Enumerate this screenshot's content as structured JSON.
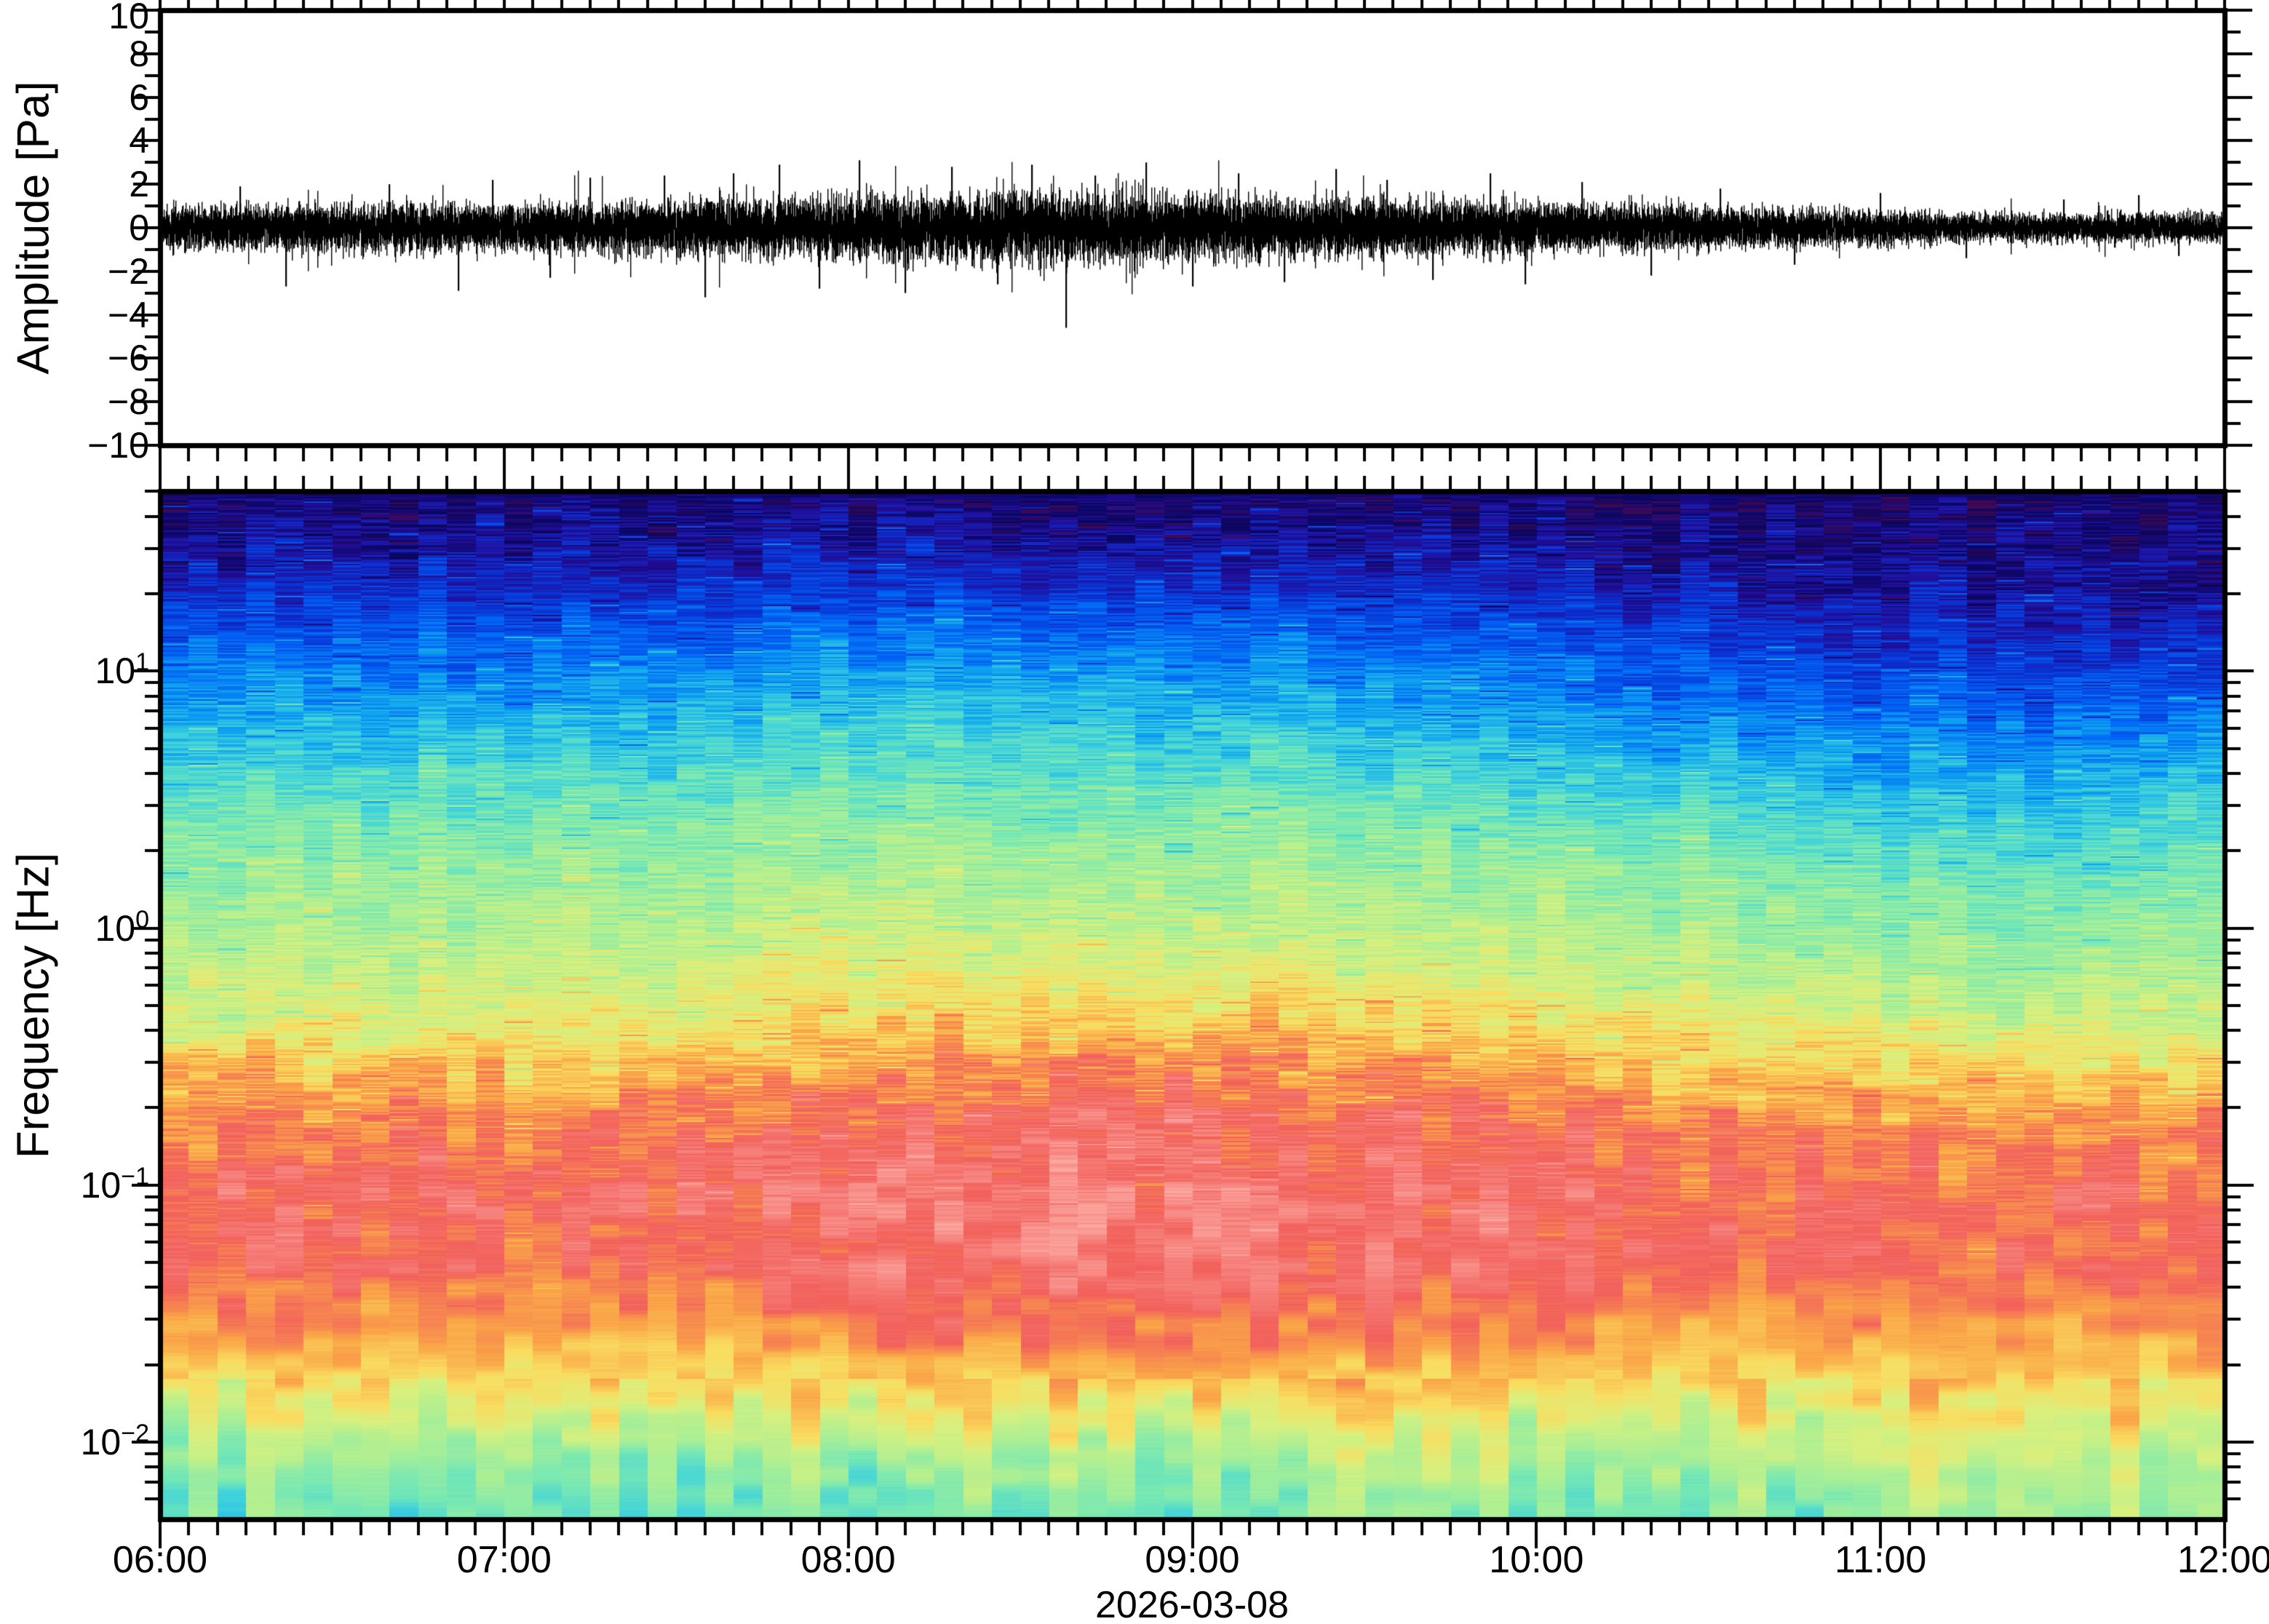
{
  "figure": {
    "background": "#ffffff"
  },
  "xaxis": {
    "hour_labels": [
      "06:00",
      "07:00",
      "08:00",
      "09:00",
      "10:00",
      "11:00",
      "12:00"
    ],
    "hour_minutes": [
      0,
      60,
      120,
      180,
      240,
      300,
      360
    ],
    "minor_tick_minutes": 5,
    "total_minutes": 360,
    "date_label": "2026-03-08"
  },
  "chart_data": [
    {
      "type": "line",
      "name": "infrasound-pressure-waveform",
      "ylabel": "Amplitude [Pa]",
      "ylim": [
        -10,
        10
      ],
      "ytick_values": [
        10,
        8,
        6,
        4,
        2,
        0,
        -2,
        -4,
        -6,
        -8,
        -10
      ],
      "ytick_labels": [
        "10",
        "8",
        "6",
        "4",
        "2",
        "0",
        "−2",
        "−4",
        "−6",
        "−8",
        "−10"
      ],
      "minor_tick_step": 1,
      "x_start": "06:00",
      "x_end": "12:00",
      "line_color": "#000000",
      "envelope_minutes": [
        0,
        15,
        30,
        45,
        60,
        75,
        90,
        105,
        120,
        135,
        150,
        165,
        180,
        195,
        210,
        225,
        240,
        255,
        270,
        285,
        300,
        315,
        330,
        345,
        360
      ],
      "envelope_sigma_pa": [
        0.4,
        0.42,
        0.45,
        0.46,
        0.46,
        0.48,
        0.52,
        0.55,
        0.6,
        0.65,
        0.68,
        0.66,
        0.6,
        0.56,
        0.55,
        0.52,
        0.48,
        0.45,
        0.4,
        0.36,
        0.32,
        0.28,
        0.26,
        0.3,
        0.27
      ],
      "spikes_min_amp": [
        [
          14,
          1.9
        ],
        [
          22,
          -2.7
        ],
        [
          40,
          2.0
        ],
        [
          52,
          -2.9
        ],
        [
          58,
          2.2
        ],
        [
          68,
          -2.3
        ],
        [
          75,
          2.3
        ],
        [
          88,
          2.4
        ],
        [
          95,
          -3.2
        ],
        [
          100,
          2.5
        ],
        [
          108,
          2.9
        ],
        [
          115,
          -2.8
        ],
        [
          122,
          3.1
        ],
        [
          130,
          -3.0
        ],
        [
          138,
          2.8
        ],
        [
          146,
          -2.6
        ],
        [
          152,
          2.9
        ],
        [
          158,
          -4.6
        ],
        [
          163,
          2.4
        ],
        [
          172,
          3.0
        ],
        [
          180,
          -2.7
        ],
        [
          188,
          2.5
        ],
        [
          196,
          -2.5
        ],
        [
          205,
          2.7
        ],
        [
          214,
          2.2
        ],
        [
          222,
          -2.4
        ],
        [
          232,
          2.5
        ],
        [
          238,
          -2.6
        ],
        [
          248,
          2.1
        ],
        [
          260,
          -2.2
        ],
        [
          272,
          1.8
        ],
        [
          285,
          -1.7
        ],
        [
          300,
          1.6
        ],
        [
          315,
          -1.4
        ],
        [
          332,
          1.3
        ],
        [
          345,
          1.5
        ],
        [
          352,
          -1.3
        ]
      ]
    },
    {
      "type": "heatmap",
      "name": "infrasound-spectrogram",
      "ylabel": "Frequency [Hz]",
      "yscale": "log",
      "ytick_base": "10",
      "ytick_exponents": [
        1,
        0,
        -1,
        -2
      ],
      "ytick_superscripts": [
        "1",
        "0",
        "−1",
        "−2"
      ],
      "freq_top_hz": 50,
      "freq_bottom_hz": 0.005,
      "time_bins": 72,
      "bin_minutes": 5,
      "time_anchors_minutes": [
        0,
        30,
        60,
        90,
        120,
        150,
        180,
        210,
        240,
        270,
        300,
        330,
        360
      ],
      "freq_anchors_log10": [
        1.7,
        1.4,
        1.1,
        0.8,
        0.5,
        0.2,
        -0.1,
        -0.4,
        -0.7,
        -1.0,
        -1.3,
        -1.6,
        -1.9,
        -2.1,
        -2.3
      ],
      "power_grid": [
        [
          0.02,
          0.02,
          0.02,
          0.02,
          0.02,
          0.02,
          0.02,
          0.02,
          0.02,
          0.015,
          0.012,
          0.012,
          0.015
        ],
        [
          0.1,
          0.1,
          0.11,
          0.11,
          0.12,
          0.12,
          0.11,
          0.1,
          0.09,
          0.07,
          0.06,
          0.05,
          0.06
        ],
        [
          0.22,
          0.22,
          0.23,
          0.24,
          0.26,
          0.26,
          0.25,
          0.23,
          0.21,
          0.17,
          0.14,
          0.12,
          0.14
        ],
        [
          0.33,
          0.33,
          0.34,
          0.35,
          0.37,
          0.37,
          0.36,
          0.34,
          0.32,
          0.28,
          0.24,
          0.22,
          0.27
        ],
        [
          0.44,
          0.44,
          0.45,
          0.45,
          0.47,
          0.47,
          0.46,
          0.45,
          0.43,
          0.4,
          0.36,
          0.34,
          0.39
        ],
        [
          0.52,
          0.52,
          0.53,
          0.53,
          0.55,
          0.55,
          0.54,
          0.53,
          0.52,
          0.49,
          0.46,
          0.44,
          0.48
        ],
        [
          0.57,
          0.57,
          0.58,
          0.59,
          0.61,
          0.62,
          0.61,
          0.6,
          0.58,
          0.56,
          0.53,
          0.51,
          0.54
        ],
        [
          0.64,
          0.65,
          0.66,
          0.68,
          0.72,
          0.74,
          0.73,
          0.72,
          0.69,
          0.66,
          0.63,
          0.61,
          0.64
        ],
        [
          0.8,
          0.81,
          0.8,
          0.82,
          0.85,
          0.87,
          0.86,
          0.85,
          0.83,
          0.8,
          0.78,
          0.77,
          0.8
        ],
        [
          0.87,
          0.88,
          0.86,
          0.88,
          0.9,
          0.92,
          0.91,
          0.9,
          0.88,
          0.86,
          0.85,
          0.84,
          0.86
        ],
        [
          0.86,
          0.87,
          0.85,
          0.86,
          0.89,
          0.91,
          0.9,
          0.89,
          0.87,
          0.85,
          0.84,
          0.83,
          0.85
        ],
        [
          0.77,
          0.78,
          0.76,
          0.77,
          0.8,
          0.82,
          0.81,
          0.8,
          0.79,
          0.77,
          0.76,
          0.76,
          0.78
        ],
        [
          0.6,
          0.62,
          0.6,
          0.61,
          0.63,
          0.65,
          0.64,
          0.63,
          0.63,
          0.63,
          0.64,
          0.66,
          0.68
        ],
        [
          0.5,
          0.51,
          0.49,
          0.5,
          0.52,
          0.53,
          0.52,
          0.52,
          0.53,
          0.54,
          0.56,
          0.58,
          0.6
        ],
        [
          0.45,
          0.46,
          0.44,
          0.45,
          0.46,
          0.47,
          0.46,
          0.46,
          0.47,
          0.48,
          0.5,
          0.52,
          0.53
        ]
      ],
      "colormap_stops": [
        [
          0.0,
          "#07065f"
        ],
        [
          0.07,
          "#230d96"
        ],
        [
          0.14,
          "#0b2fd0"
        ],
        [
          0.22,
          "#0063f5"
        ],
        [
          0.3,
          "#0fa3f0"
        ],
        [
          0.38,
          "#3fd2dc"
        ],
        [
          0.46,
          "#77e8b4"
        ],
        [
          0.54,
          "#abef95"
        ],
        [
          0.62,
          "#d9f07e"
        ],
        [
          0.69,
          "#f9dd60"
        ],
        [
          0.77,
          "#faa648"
        ],
        [
          0.86,
          "#f2605c"
        ],
        [
          1.0,
          "#fcaba4"
        ]
      ],
      "undercolor": "#51094f"
    }
  ],
  "axis": {
    "color": "#000000"
  }
}
